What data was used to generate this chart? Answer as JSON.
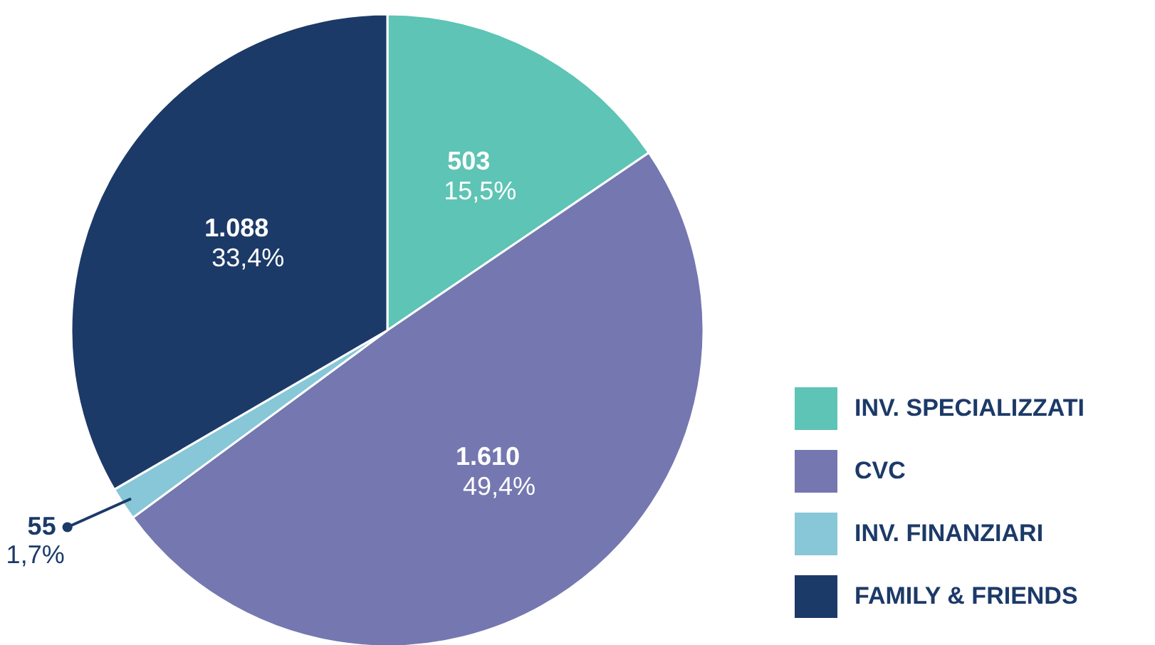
{
  "chart_data": {
    "type": "pie",
    "categories": [
      "INV. SPECIALIZZATI",
      "CVC",
      "INV. FINANZIARI",
      "FAMILY & FRIENDS"
    ],
    "values": [
      15.5,
      49.4,
      1.7,
      33.4
    ],
    "colors": [
      "#5ec4b5",
      "#7577b0",
      "#87c7d7",
      "#1c3a68"
    ],
    "value_labels": [
      "503\n15,5%",
      "1.610\n49,4%",
      "55\n1,7%",
      "1.088\n33,4%"
    ],
    "legend": "bottom right"
  }
}
